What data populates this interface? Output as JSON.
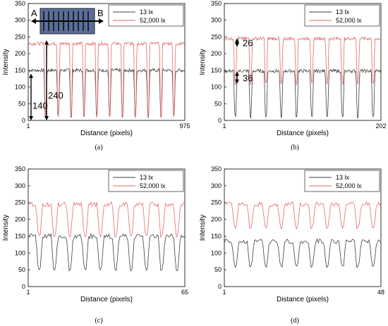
{
  "chart_data": [
    {
      "type": "line",
      "caption": "(a)",
      "xlabel": "Distance (pixels)",
      "ylabel": "Intensity",
      "xlim": [
        1,
        975
      ],
      "ylim": [
        0,
        350
      ],
      "x_ticks": [
        "1",
        "975"
      ],
      "y_ticks": [
        "0",
        "50",
        "100",
        "150",
        "200",
        "250",
        "300",
        "350"
      ],
      "legend_position": "top-right",
      "series": [
        {
          "name": "13 lx",
          "color": "#404040",
          "baseline": 150,
          "dip": 10
        },
        {
          "name": "52,000 lx",
          "color": "#e66a6a",
          "baseline": 230,
          "dip": 12
        }
      ],
      "dips": 11,
      "annotations": [
        {
          "text": "240",
          "from": 0,
          "to": 240
        },
        {
          "text": "140",
          "from": 0,
          "to": 140
        }
      ],
      "inset_labels": [
        "A",
        "B"
      ]
    },
    {
      "type": "line",
      "caption": "(b)",
      "xlabel": "Distance (pixels)",
      "ylabel": "Intensity",
      "xlim": [
        1,
        202
      ],
      "ylim": [
        0,
        350
      ],
      "x_ticks": [
        "1",
        "202"
      ],
      "y_ticks": [
        "0",
        "50",
        "100",
        "150",
        "200",
        "250",
        "300",
        "350"
      ],
      "legend_position": "top-right",
      "series": [
        {
          "name": "13 lx",
          "color": "#404040",
          "baseline": 148,
          "dip": 10
        },
        {
          "name": "52,000 lx",
          "color": "#e66a6a",
          "baseline": 245,
          "dip": 110
        }
      ],
      "dips": 10,
      "annotations": [
        {
          "text": "26",
          "from": 220,
          "to": 246
        },
        {
          "text": "36",
          "from": 110,
          "to": 146
        }
      ]
    },
    {
      "type": "line",
      "caption": "(c)",
      "xlabel": "Distance (pixels)",
      "ylabel": "Intensity",
      "xlim": [
        1,
        65
      ],
      "ylim": [
        0,
        350
      ],
      "x_ticks": [
        "1",
        "65"
      ],
      "y_ticks": [
        "0",
        "50",
        "100",
        "150",
        "200",
        "250",
        "300",
        "350"
      ],
      "legend_position": "top-right",
      "series": [
        {
          "name": "13 lx",
          "color": "#404040",
          "baseline": 150,
          "dip": 50
        },
        {
          "name": "52,000 lx",
          "color": "#e66a6a",
          "baseline": 245,
          "dip": 150
        }
      ],
      "dips": 10
    },
    {
      "type": "line",
      "caption": "(d)",
      "xlabel": "Distance (pixels)",
      "ylabel": "Intensity",
      "xlim": [
        1,
        48
      ],
      "ylim": [
        0,
        350
      ],
      "x_ticks": [
        "1",
        "48"
      ],
      "y_ticks": [
        "0",
        "50",
        "100",
        "150",
        "200",
        "250",
        "300",
        "350"
      ],
      "legend_position": "top-right",
      "series": [
        {
          "name": "13 lx",
          "color": "#404040",
          "baseline": 135,
          "dip": 60
        },
        {
          "name": "52,000 lx",
          "color": "#e66a6a",
          "baseline": 245,
          "dip": 175
        }
      ],
      "dips": 10
    }
  ]
}
